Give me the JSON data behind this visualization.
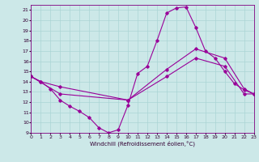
{
  "xlabel": "Windchill (Refroidissement éolien,°C)",
  "xlim": [
    0,
    23
  ],
  "ylim": [
    9,
    21.5
  ],
  "yticks": [
    9,
    10,
    11,
    12,
    13,
    14,
    15,
    16,
    17,
    18,
    19,
    20,
    21
  ],
  "xticks": [
    0,
    1,
    2,
    3,
    4,
    5,
    6,
    7,
    8,
    9,
    10,
    11,
    12,
    13,
    14,
    15,
    16,
    17,
    18,
    19,
    20,
    21,
    22,
    23
  ],
  "bg_color": "#cce8e8",
  "line_color": "#990099",
  "grid_color": "#aad4d4",
  "line1_x": [
    0,
    1,
    2,
    3,
    4,
    5,
    6,
    7,
    8,
    9,
    10,
    11,
    12,
    13,
    14,
    15,
    16,
    17,
    18,
    19,
    20,
    21,
    22,
    23
  ],
  "line1_y": [
    14.5,
    14.0,
    13.3,
    12.2,
    11.6,
    11.1,
    10.5,
    9.5,
    9.0,
    9.3,
    11.7,
    14.8,
    15.5,
    18.0,
    20.7,
    21.2,
    21.3,
    19.3,
    17.0,
    16.3,
    15.0,
    13.8,
    13.2,
    12.8
  ],
  "line2_x": [
    0,
    1,
    3,
    10,
    14,
    17,
    20,
    22,
    23
  ],
  "line2_y": [
    14.5,
    14.0,
    13.5,
    12.2,
    15.2,
    17.2,
    16.3,
    13.3,
    12.8
  ],
  "line3_x": [
    0,
    3,
    10,
    14,
    17,
    20,
    22,
    23
  ],
  "line3_y": [
    14.5,
    12.8,
    12.2,
    14.5,
    16.3,
    15.5,
    12.8,
    12.8
  ]
}
